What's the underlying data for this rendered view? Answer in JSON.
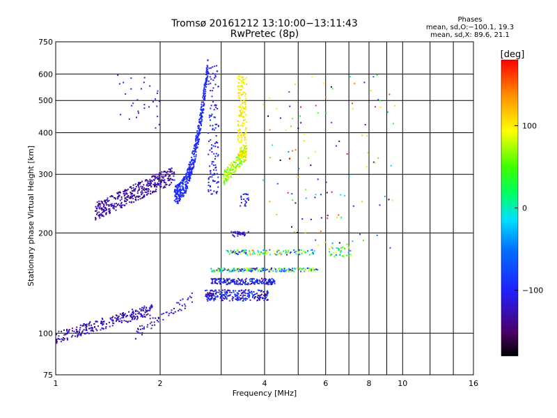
{
  "chart_data": {
    "type": "scatter",
    "title": "Tromsø 20161212 13:10:00−13:11:43",
    "subtitle": "RwPretec (8p)",
    "xlabel": "Frequency [MHz]",
    "ylabel": "Stationary phase Virtual Height [km]",
    "x_scale": "log",
    "y_scale": "log",
    "xlim": [
      1,
      16
    ],
    "ylim": [
      75,
      750
    ],
    "x_ticks": [
      1,
      2,
      4,
      6,
      8,
      10,
      16
    ],
    "x_tick_labels": [
      "1",
      "2",
      "4",
      "6",
      "8",
      "10",
      "16"
    ],
    "x_grid": [
      1,
      2,
      3,
      4,
      5,
      6,
      7,
      8,
      9,
      10,
      12,
      14,
      16
    ],
    "y_ticks": [
      75,
      100,
      200,
      300,
      400,
      500,
      600,
      750
    ],
    "y_tick_labels": [
      "75",
      "100",
      "200",
      "300",
      "400",
      "500",
      "600",
      "750"
    ],
    "grid": true,
    "colorbar": {
      "label": "[deg]",
      "range": [
        -180,
        180
      ],
      "ticks": [
        100,
        0,
        -100
      ],
      "tick_labels": [
        "100",
        "0",
        "−100"
      ],
      "colormap": "rainbow (black → purple → blue → cyan → green → yellow → orange → red)"
    },
    "stats": {
      "heading": "Phases",
      "line1": "mean, sd,O:−100.1, 19.3",
      "line2": "mean, sd,X:  89.6, 21.1"
    },
    "clusters": [
      {
        "f0": 1.0,
        "f1": 1.9,
        "h0": 97,
        "h1": 118,
        "shape": "ramp",
        "phase": [
          -150,
          -100
        ],
        "n": 260
      },
      {
        "f0": 1.7,
        "f1": 2.5,
        "h0": 100,
        "h1": 128,
        "shape": "ramp",
        "phase": [
          -150,
          -90
        ],
        "n": 60
      },
      {
        "f0": 1.3,
        "f1": 2.2,
        "h0": 232,
        "h1": 300,
        "shape": "ramp",
        "spread": 0.06,
        "phase": [
          -150,
          -110
        ],
        "n": 420
      },
      {
        "f0": 2.2,
        "f1": 2.75,
        "h0": 260,
        "h1": 640,
        "shape": "curve",
        "spread": 0.07,
        "phase": [
          -110,
          -80
        ],
        "n": 460
      },
      {
        "f0": 2.75,
        "f1": 2.95,
        "h0": 260,
        "h1": 640,
        "shape": "box",
        "phase": [
          -120,
          -85
        ],
        "n": 120
      },
      {
        "f0": 3.05,
        "f1": 3.55,
        "h0": 292,
        "h1": 350,
        "shape": "ramp",
        "spread": 0.05,
        "phase": [
          40,
          110
        ],
        "n": 160
      },
      {
        "f0": 3.35,
        "f1": 3.55,
        "h0": 330,
        "h1": 600,
        "shape": "box",
        "phase": [
          80,
          120
        ],
        "n": 180
      },
      {
        "f0": 2.7,
        "f1": 4.1,
        "h0": 125,
        "h1": 135,
        "shape": "box",
        "phase": [
          -150,
          -60
        ],
        "n": 260
      },
      {
        "f0": 2.8,
        "f1": 4.3,
        "h0": 140,
        "h1": 146,
        "shape": "box",
        "phase": [
          -150,
          -60
        ],
        "n": 200
      },
      {
        "f0": 2.8,
        "f1": 5.7,
        "h0": 153,
        "h1": 157,
        "shape": "box",
        "phase": [
          -130,
          130
        ],
        "n": 200
      },
      {
        "f0": 3.1,
        "f1": 5.6,
        "h0": 172,
        "h1": 178,
        "shape": "box",
        "phase": [
          -120,
          140
        ],
        "n": 130
      },
      {
        "f0": 3.2,
        "f1": 3.6,
        "h0": 195,
        "h1": 202,
        "shape": "box",
        "phase": [
          -140,
          -100
        ],
        "n": 30
      },
      {
        "f0": 3.4,
        "f1": 3.6,
        "h0": 240,
        "h1": 262,
        "shape": "box",
        "phase": [
          -120,
          -90
        ],
        "n": 20
      },
      {
        "f0": 3.95,
        "f1": 9.5,
        "h0": 180,
        "h1": 600,
        "shape": "sparse",
        "phase": [
          -180,
          180
        ],
        "n": 120
      },
      {
        "f0": 6.1,
        "f1": 7.1,
        "h0": 170,
        "h1": 182,
        "shape": "box",
        "phase": [
          -60,
          120
        ],
        "n": 40
      },
      {
        "f0": 1.5,
        "f1": 2.0,
        "h0": 390,
        "h1": 600,
        "shape": "sparse",
        "phase": [
          -120,
          -80
        ],
        "n": 30
      }
    ]
  }
}
